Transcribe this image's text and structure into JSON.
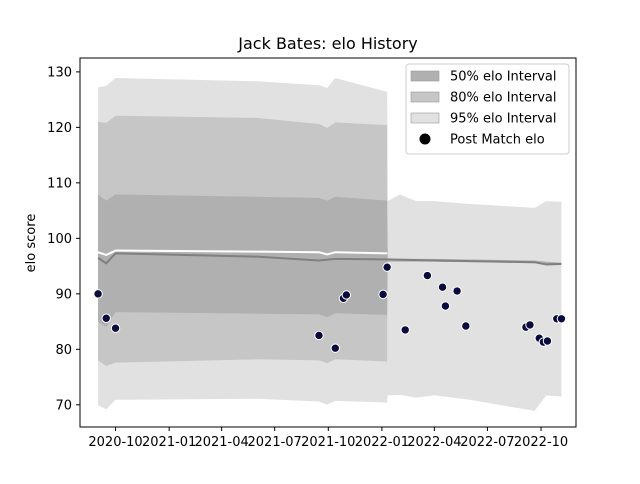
{
  "chart_data": {
    "type": "area",
    "title": "Jack Bates: elo History",
    "xlabel": "",
    "ylabel": "elo score",
    "ylim": [
      66,
      132.5
    ],
    "xlim": [
      "2020-08-01",
      "2022-11-30"
    ],
    "grid": false,
    "legend_placement": "top-right",
    "x_ticks": [
      "2020-10-01",
      "2021-01-01",
      "2021-04-01",
      "2021-07-01",
      "2021-10-01",
      "2022-01-01",
      "2022-04-01",
      "2022-07-01",
      "2022-10-01"
    ],
    "x_tick_labels": [
      "2020-10",
      "2021-01",
      "2021-04",
      "2021-07",
      "2021-10",
      "2022-01",
      "2022-04",
      "2022-07",
      "2022-10"
    ],
    "y_ticks": [
      70,
      80,
      90,
      100,
      110,
      120,
      130
    ],
    "y_tick_labels": [
      "70",
      "80",
      "90",
      "100",
      "110",
      "120",
      "130"
    ],
    "series": [
      {
        "name": "50% elo Interval",
        "kind": "band",
        "color": "#b0b0b0",
        "points": [
          {
            "x": "2020-09-01",
            "low": 85.0,
            "high": 107.9
          },
          {
            "x": "2020-09-15",
            "low": 84.0,
            "high": 106.8
          },
          {
            "x": "2020-10-01",
            "low": 86.7,
            "high": 107.9
          },
          {
            "x": "2021-09-15",
            "low": 86.3,
            "high": 107.3
          },
          {
            "x": "2021-09-29",
            "low": 85.8,
            "high": 106.8
          },
          {
            "x": "2021-10-13",
            "low": 86.5,
            "high": 107.5
          },
          {
            "x": "2022-01-10",
            "low": 86.2,
            "high": 106.8
          },
          {
            "x": "2022-01-11",
            "low": 95.8,
            "high": 96.3
          },
          {
            "x": "2022-04-01",
            "low": 95.8,
            "high": 96.3
          },
          {
            "x": "2022-09-20",
            "low": 95.5,
            "high": 96.0
          },
          {
            "x": "2022-10-10",
            "low": 95.1,
            "high": 95.8
          },
          {
            "x": "2022-11-05",
            "low": 95.2,
            "high": 95.6
          }
        ]
      },
      {
        "name": "80% elo Interval",
        "kind": "band",
        "color": "#c6c6c6",
        "points": [
          {
            "x": "2020-09-01",
            "low": 78.0,
            "high": 121.0
          },
          {
            "x": "2020-09-15",
            "low": 77.0,
            "high": 120.8
          },
          {
            "x": "2020-10-01",
            "low": 77.6,
            "high": 122.1
          },
          {
            "x": "2021-06-01",
            "low": 78.2,
            "high": 121.7
          },
          {
            "x": "2021-09-15",
            "low": 78.0,
            "high": 120.6
          },
          {
            "x": "2021-09-29",
            "low": 77.5,
            "high": 119.9
          },
          {
            "x": "2021-10-13",
            "low": 78.2,
            "high": 120.9
          },
          {
            "x": "2022-01-10",
            "low": 77.8,
            "high": 120.4
          }
        ]
      },
      {
        "name": "95% elo Interval",
        "kind": "band",
        "color": "#e1e1e1",
        "points": [
          {
            "x": "2020-09-01",
            "low": 69.9,
            "high": 127.2
          },
          {
            "x": "2020-09-15",
            "low": 69.2,
            "high": 127.5
          },
          {
            "x": "2020-10-01",
            "low": 70.9,
            "high": 128.9
          },
          {
            "x": "2021-06-01",
            "low": 71.1,
            "high": 128.3
          },
          {
            "x": "2021-09-15",
            "low": 70.6,
            "high": 127.6
          },
          {
            "x": "2021-09-29",
            "low": 70.0,
            "high": 127.1
          },
          {
            "x": "2021-10-13",
            "low": 70.7,
            "high": 128.9
          },
          {
            "x": "2022-01-10",
            "low": 70.4,
            "high": 126.4
          },
          {
            "x": "2022-01-11",
            "low": 71.7,
            "high": 106.7
          },
          {
            "x": "2022-02-01",
            "low": 71.8,
            "high": 107.9
          },
          {
            "x": "2022-03-01",
            "low": 71.3,
            "high": 106.7
          },
          {
            "x": "2022-04-01",
            "low": 71.7,
            "high": 106.7
          },
          {
            "x": "2022-06-01",
            "low": 70.9,
            "high": 106.2
          },
          {
            "x": "2022-09-20",
            "low": 68.9,
            "high": 105.5
          },
          {
            "x": "2022-10-10",
            "low": 71.7,
            "high": 106.7
          },
          {
            "x": "2022-11-05",
            "low": 71.5,
            "high": 106.6
          }
        ]
      },
      {
        "name": "",
        "kind": "line",
        "color": "#808080",
        "points": [
          {
            "x": "2020-09-01",
            "y": 96.5
          },
          {
            "x": "2020-09-15",
            "y": 95.5
          },
          {
            "x": "2020-10-01",
            "y": 97.3
          },
          {
            "x": "2021-06-01",
            "y": 96.7
          },
          {
            "x": "2021-09-15",
            "y": 96.0
          },
          {
            "x": "2021-10-13",
            "y": 96.3
          },
          {
            "x": "2022-01-10",
            "y": 96.2
          },
          {
            "x": "2022-04-01",
            "y": 96.0
          },
          {
            "x": "2022-09-20",
            "y": 95.7
          },
          {
            "x": "2022-10-10",
            "y": 95.3
          },
          {
            "x": "2022-11-05",
            "y": 95.4
          }
        ]
      },
      {
        "name": "",
        "kind": "line",
        "color": "#ffffff",
        "points": [
          {
            "x": "2020-09-01",
            "y": 97.5
          },
          {
            "x": "2020-09-15",
            "y": 97.0
          },
          {
            "x": "2020-10-01",
            "y": 97.8
          },
          {
            "x": "2021-06-01",
            "y": 97.6
          },
          {
            "x": "2021-09-15",
            "y": 97.5
          },
          {
            "x": "2021-09-29",
            "y": 97.1
          },
          {
            "x": "2021-10-13",
            "y": 97.5
          },
          {
            "x": "2022-01-10",
            "y": 97.3
          }
        ]
      },
      {
        "name": "Post Match elo",
        "kind": "scatter",
        "color": "#0a0a3c",
        "points": [
          {
            "x": "2020-09-01",
            "y": 90.0
          },
          {
            "x": "2020-09-15",
            "y": 85.6
          },
          {
            "x": "2020-10-01",
            "y": 83.8
          },
          {
            "x": "2021-09-15",
            "y": 82.5
          },
          {
            "x": "2021-10-13",
            "y": 80.2
          },
          {
            "x": "2021-10-27",
            "y": 89.2
          },
          {
            "x": "2021-11-01",
            "y": 89.8
          },
          {
            "x": "2022-01-03",
            "y": 89.9
          },
          {
            "x": "2022-01-10",
            "y": 94.8
          },
          {
            "x": "2022-02-10",
            "y": 83.5
          },
          {
            "x": "2022-03-20",
            "y": 93.3
          },
          {
            "x": "2022-04-15",
            "y": 91.2
          },
          {
            "x": "2022-04-20",
            "y": 87.8
          },
          {
            "x": "2022-05-10",
            "y": 90.5
          },
          {
            "x": "2022-05-25",
            "y": 84.2
          },
          {
            "x": "2022-09-05",
            "y": 84.0
          },
          {
            "x": "2022-09-12",
            "y": 84.4
          },
          {
            "x": "2022-09-28",
            "y": 82.0
          },
          {
            "x": "2022-10-05",
            "y": 81.3
          },
          {
            "x": "2022-10-12",
            "y": 81.5
          },
          {
            "x": "2022-10-28",
            "y": 85.5
          },
          {
            "x": "2022-11-05",
            "y": 85.5
          }
        ]
      }
    ]
  }
}
